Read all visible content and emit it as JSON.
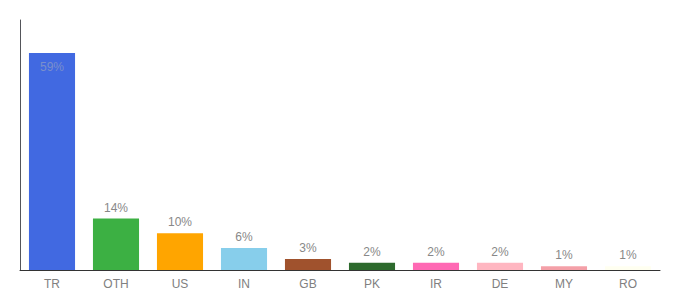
{
  "chart_data": {
    "type": "bar",
    "categories": [
      "TR",
      "OTH",
      "US",
      "IN",
      "GB",
      "PK",
      "IR",
      "DE",
      "MY",
      "RO"
    ],
    "values": [
      59,
      14,
      10,
      6,
      3,
      2,
      2,
      2,
      1,
      1
    ],
    "value_labels": [
      "59%",
      "14%",
      "10%",
      "6%",
      "3%",
      "2%",
      "2%",
      "2%",
      "1%",
      "1%"
    ],
    "colors": [
      "#4169e1",
      "#3cb043",
      "#ffa500",
      "#87ceeb",
      "#a0522d",
      "#2d6a2d",
      "#ff69b4",
      "#ffb6c1",
      "#f4a0a8",
      "#fffff0"
    ],
    "ylim": [
      0,
      68
    ],
    "grid": false,
    "data_labels": true,
    "tick_labels": "x"
  }
}
